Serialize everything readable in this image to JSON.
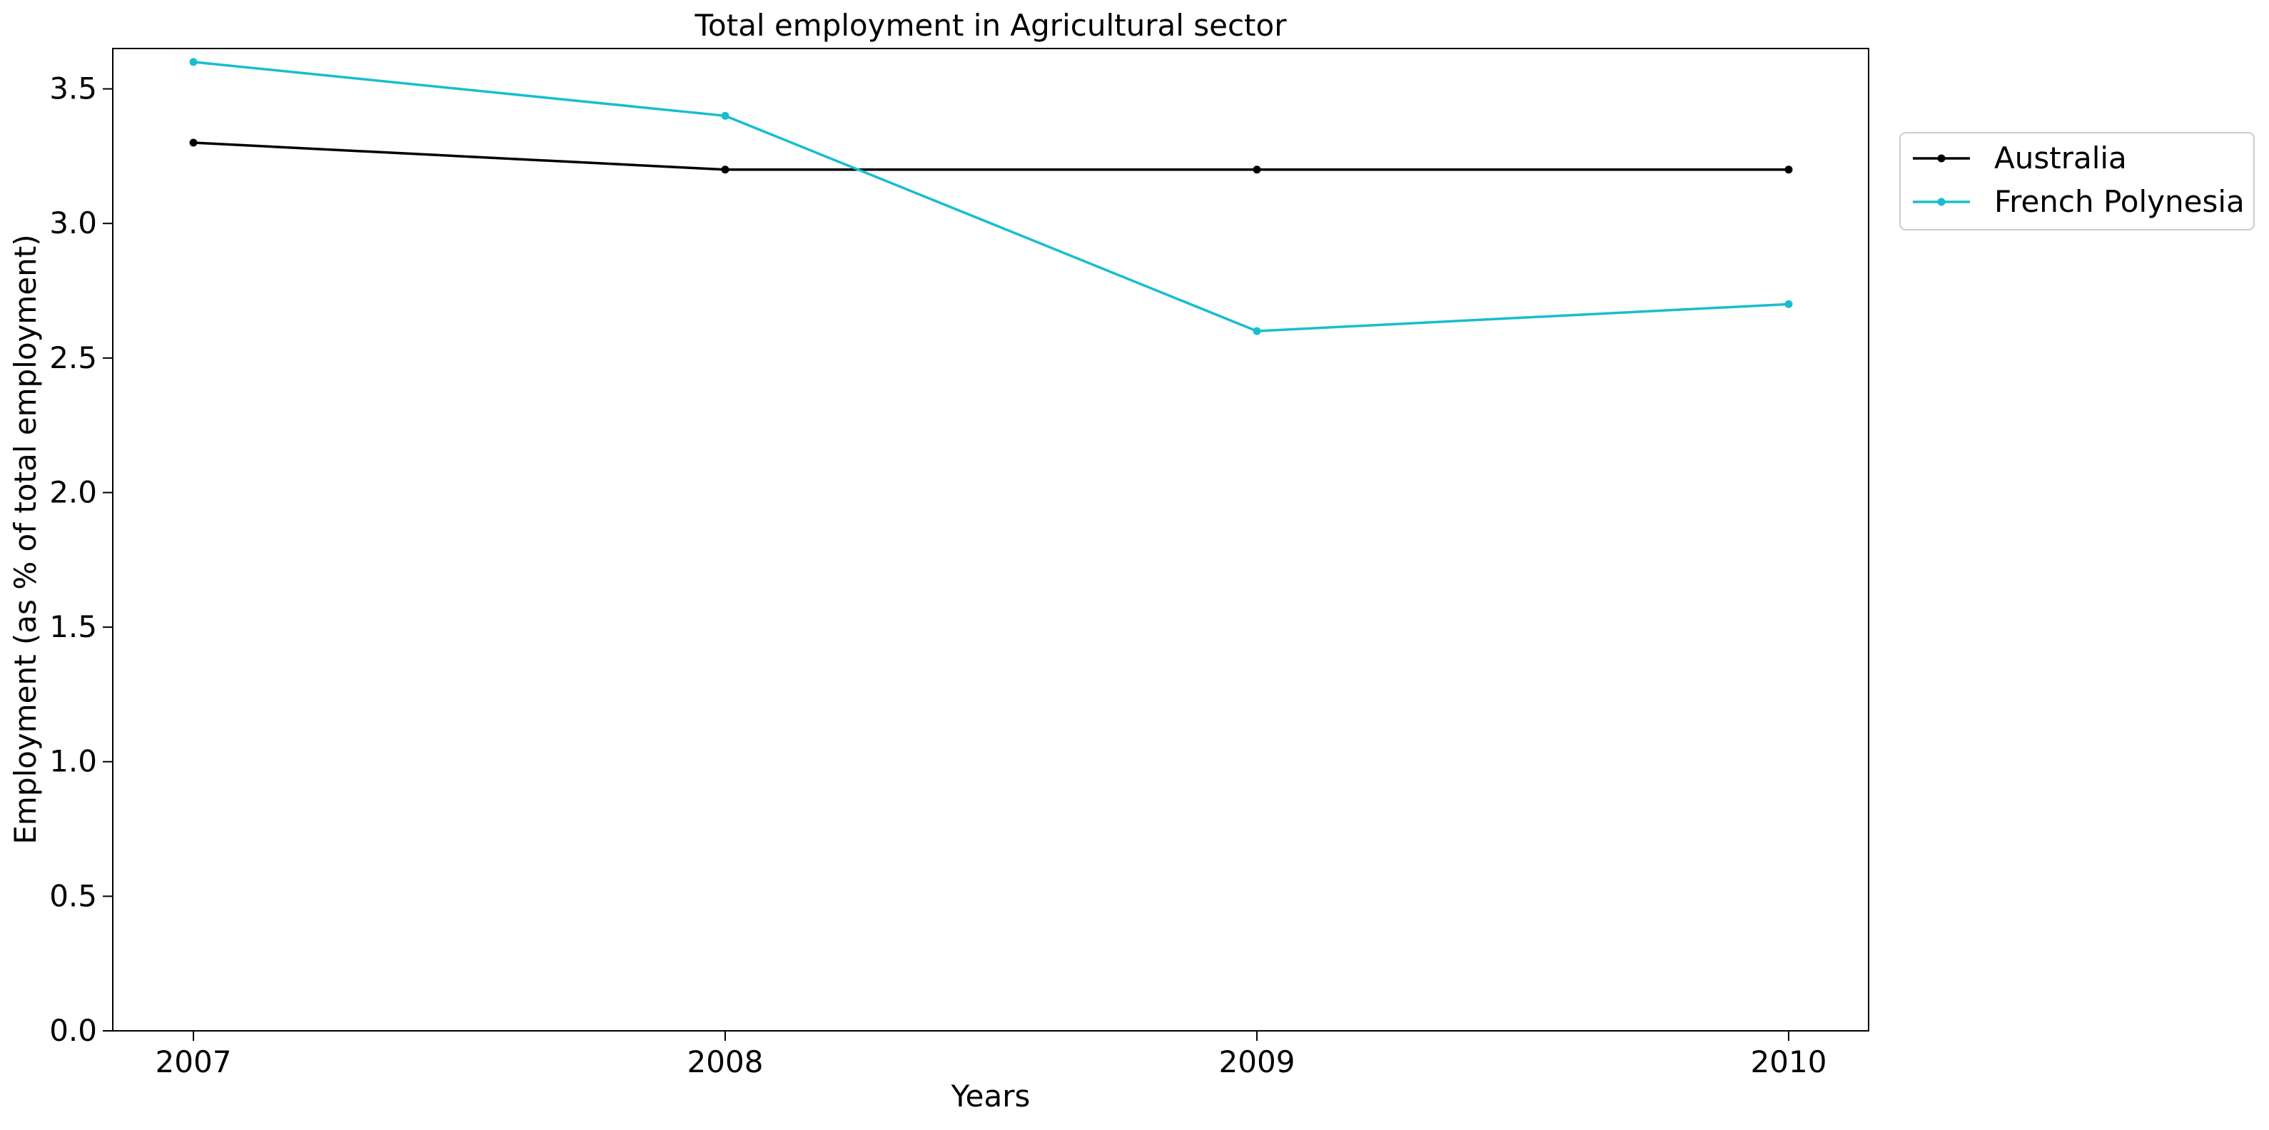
{
  "chart_data": {
    "type": "line",
    "title": "Total employment in Agricultural sector",
    "xlabel": "Years",
    "ylabel": "Employment (as % of total employment)",
    "categories": [
      "2007",
      "2008",
      "2009",
      "2010"
    ],
    "series": [
      {
        "name": "Australia",
        "color": "#000000",
        "values": [
          3.3,
          3.2,
          3.2,
          3.2
        ]
      },
      {
        "name": "French Polynesia",
        "color": "#17becf",
        "values": [
          3.6,
          3.4,
          2.6,
          2.7
        ]
      }
    ],
    "ylim": [
      0,
      3.65
    ],
    "yticks": [
      "0.0",
      "0.5",
      "1.0",
      "1.5",
      "2.0",
      "2.5",
      "3.0",
      "3.5"
    ],
    "grid": false,
    "legend_position": "outside top-right",
    "marker": "dot"
  }
}
